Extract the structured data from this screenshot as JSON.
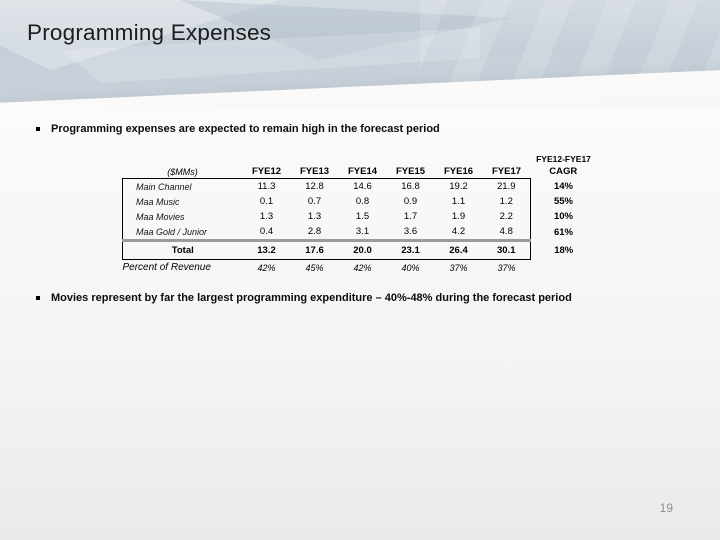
{
  "slide": {
    "title": "Programming Expenses",
    "bullet1": "Programming expenses are expected to remain high in the forecast period",
    "bullet2": "Movies represent by far the largest programming expenditure – 40%-48%  during the forecast period",
    "page_number": "19"
  },
  "table": {
    "units_label": "($MMs)",
    "cagr_header_top": "FYE12-FYE17",
    "cagr_header_bottom": "CAGR",
    "columns": [
      "FYE12",
      "FYE13",
      "FYE14",
      "FYE15",
      "FYE16",
      "FYE17"
    ],
    "rows": [
      {
        "label": "Main Channel",
        "values": [
          "11.3",
          "12.8",
          "14.6",
          "16.8",
          "19.2",
          "21.9"
        ],
        "cagr": "14%"
      },
      {
        "label": "Maa Music",
        "values": [
          "0.1",
          "0.7",
          "0.8",
          "0.9",
          "1.1",
          "1.2"
        ],
        "cagr": "55%"
      },
      {
        "label": "Maa Movies",
        "values": [
          "1.3",
          "1.3",
          "1.5",
          "1.7",
          "1.9",
          "2.2"
        ],
        "cagr": "10%"
      },
      {
        "label": "Maa Gold / Junior",
        "values": [
          "0.4",
          "2.8",
          "3.1",
          "3.6",
          "4.2",
          "4.8"
        ],
        "cagr": "61%"
      }
    ],
    "total_row": {
      "label": "Total",
      "values": [
        "13.2",
        "17.6",
        "20.0",
        "23.1",
        "26.4",
        "30.1"
      ],
      "cagr": "18%"
    },
    "percent_row": {
      "label": "Percent of Revenue",
      "values": [
        "42%",
        "45%",
        "42%",
        "40%",
        "37%",
        "37%"
      ]
    }
  },
  "colors": {
    "band": "#c6cfd9",
    "title_text": "#1c1c1c",
    "table_border": "#000000",
    "separator_gray": "#9b9b9b",
    "page_number": "#8f8d8b"
  }
}
